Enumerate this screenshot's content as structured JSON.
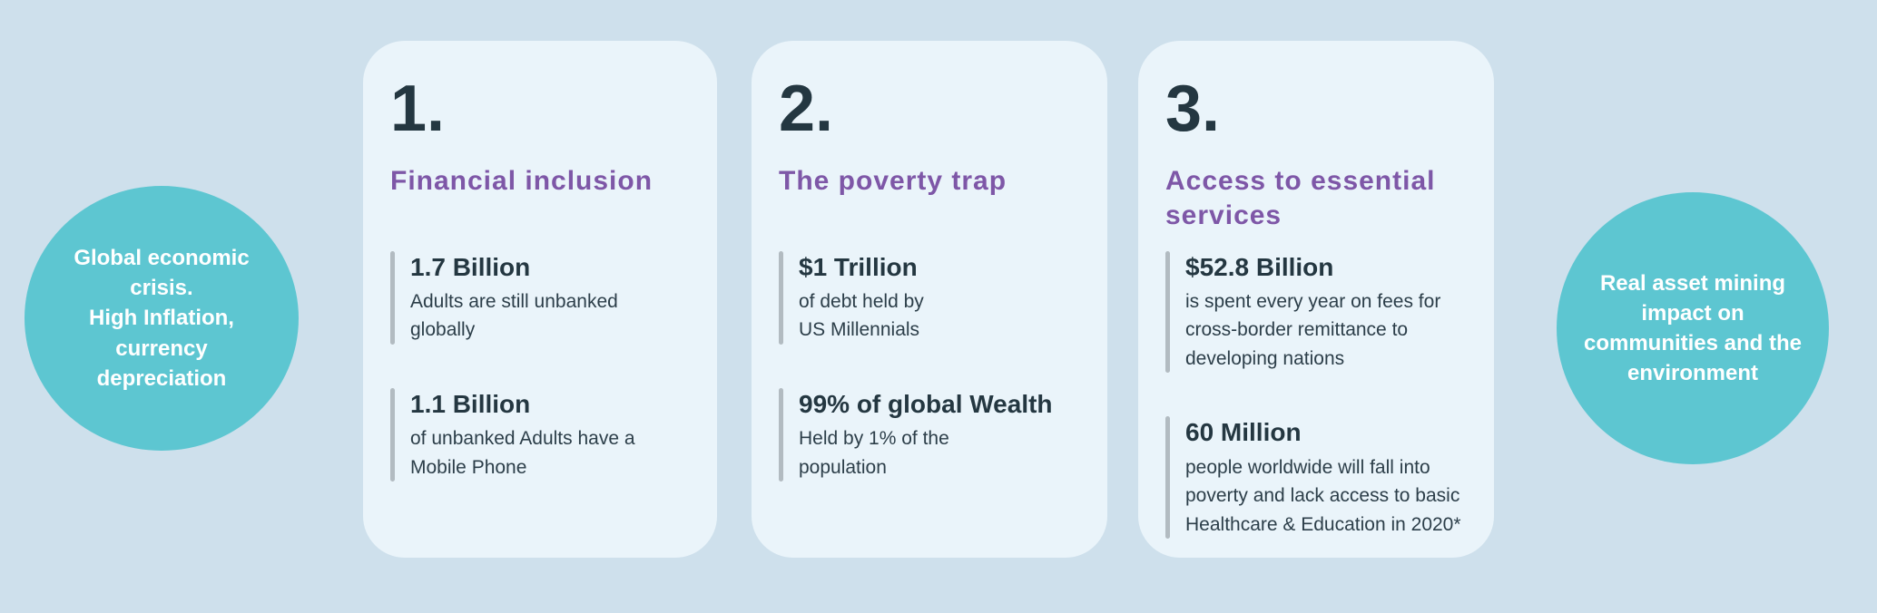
{
  "colors": {
    "background": "#cee0ec",
    "card_background": "#eaf4fa",
    "bubble_teal": "#5dc6d1",
    "heading_purple": "#7e57a7",
    "text_dark": "#243741",
    "accent_bar_gray": "#b2bbc1"
  },
  "bubbles": {
    "left": {
      "text": "Global economic\ncrisis.\nHigh Inflation,\ncurrency\ndepreciation"
    },
    "right": {
      "text": "Real asset  mining\nimpact on\ncommunities and the\nenvironment"
    }
  },
  "cards": [
    {
      "number": "1.",
      "title": "Financial inclusion",
      "stats": [
        {
          "headline": "1.7 Billion",
          "description": "Adults are still unbanked\nglobally"
        },
        {
          "headline": "1.1 Billion",
          "description": "of unbanked Adults have a\nMobile Phone"
        }
      ]
    },
    {
      "number": "2.",
      "title": "The poverty trap",
      "stats": [
        {
          "headline": "$1 Trillion",
          "description": "of debt held by\nUS Millennials"
        },
        {
          "headline": "99% of global Wealth",
          "description": "Held by 1% of the\npopulation"
        }
      ]
    },
    {
      "number": "3.",
      "title": "Access to essential\nservices",
      "stats": [
        {
          "headline": "$52.8 Billion",
          "description": "is spent every year on fees for\ncross-border remittance to\ndeveloping nations"
        },
        {
          "headline": "60 Million",
          "description": "people worldwide will fall into\npoverty and lack access to basic\nHealthcare & Education in 2020*"
        }
      ]
    }
  ]
}
